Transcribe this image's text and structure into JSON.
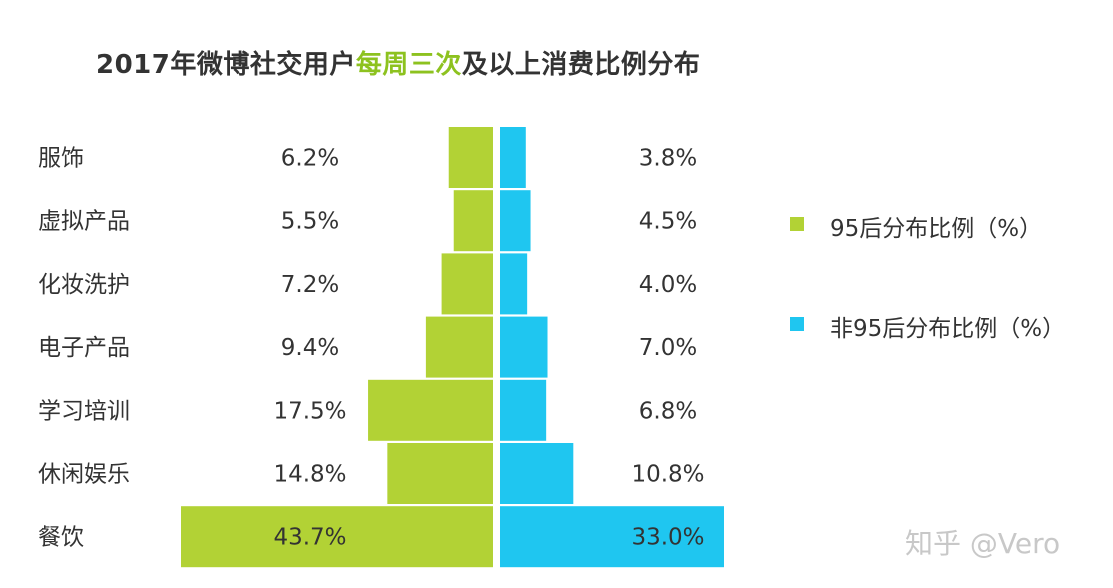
{
  "title": {
    "prefix": "2017年微博社交用户",
    "highlight": "每周三次",
    "suffix": "及以上消费比例分布"
  },
  "colors": {
    "series_95": "#b2d235",
    "series_non95": "#1fc6f0",
    "highlight": "#8dc21f",
    "text": "#333333"
  },
  "chart_data": {
    "type": "bar",
    "orientation": "horizontal-butterfly",
    "categories": [
      "服饰",
      "虚拟产品",
      "化妆洗护",
      "电子产品",
      "学习培训",
      "休闲娱乐",
      "餐饮"
    ],
    "series": [
      {
        "name": "95后分布比例（%）",
        "values": [
          6.2,
          5.5,
          7.2,
          9.4,
          17.5,
          14.8,
          43.7
        ],
        "labels": [
          "6.2%",
          "5.5%",
          "7.2%",
          "9.4%",
          "17.5%",
          "14.8%",
          "43.7%"
        ]
      },
      {
        "name": "非95后分布比例（%）",
        "values": [
          3.8,
          4.5,
          4.0,
          7.0,
          6.8,
          10.8,
          33.0
        ],
        "labels": [
          "3.8%",
          "4.5%",
          "4.0%",
          "7.0%",
          "6.8%",
          "10.8%",
          "33.0%"
        ]
      }
    ],
    "xlabel": "",
    "ylabel": "",
    "legend_position": "right"
  },
  "legend": [
    {
      "label": "95后分布比例（%）",
      "color": "#b2d235"
    },
    {
      "label": "非95后分布比例（%）",
      "color": "#1fc6f0"
    }
  ],
  "watermark": "知乎 @Vero"
}
